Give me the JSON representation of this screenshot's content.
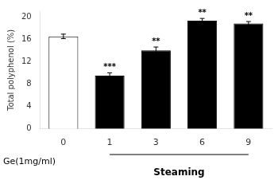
{
  "chart_data": {
    "type": "bar",
    "categories": [
      "0",
      "1",
      "3",
      "6",
      "9"
    ],
    "values": [
      16.5,
      9.5,
      14.0,
      19.3,
      18.8
    ],
    "errors": [
      0.4,
      0.5,
      0.6,
      0.4,
      0.35
    ],
    "colors": [
      "white",
      "black",
      "black",
      "black",
      "black"
    ],
    "ylabel": "Total polyphenol (%)",
    "ylim": [
      0,
      21
    ],
    "yticks": [
      0,
      4,
      8,
      12,
      16,
      20
    ],
    "grid": false,
    "annotations": [
      {
        "category": "1",
        "text": "***"
      },
      {
        "category": "3",
        "text": "**"
      },
      {
        "category": "6",
        "text": "**"
      },
      {
        "category": "9",
        "text": "**"
      },
      {
        "text": "Ge(1mg/ml)"
      },
      {
        "text": "Steaming",
        "from": "1",
        "to": "9"
      }
    ]
  }
}
